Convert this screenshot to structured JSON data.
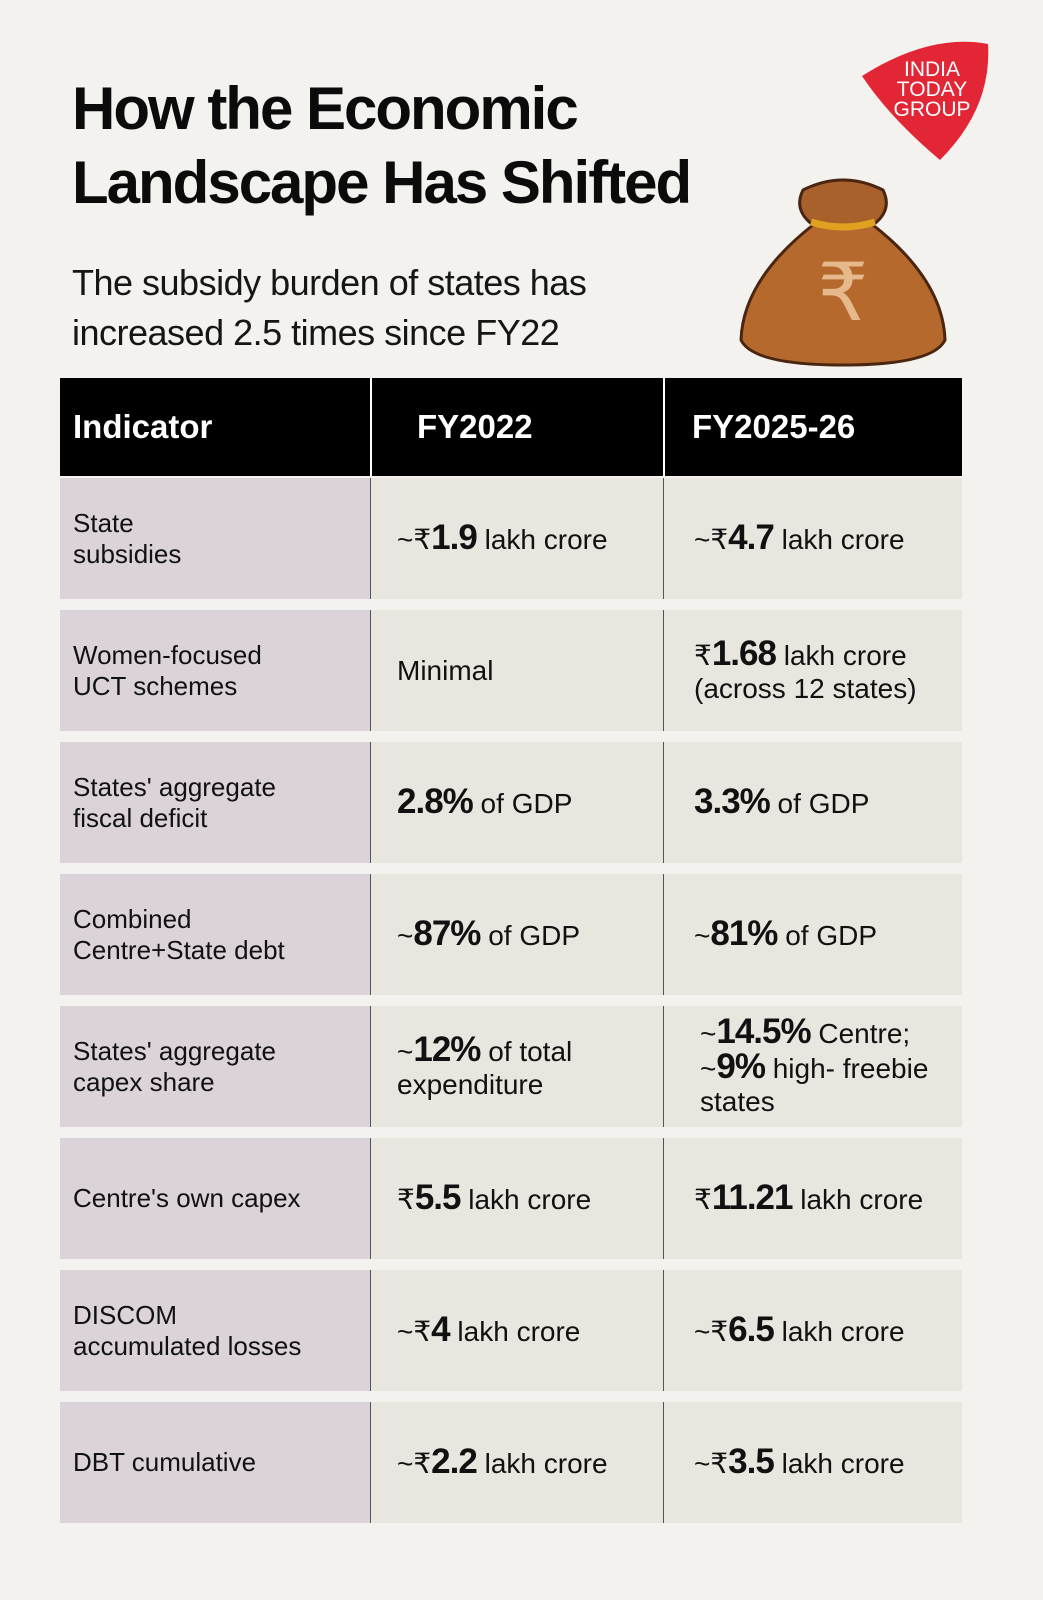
{
  "title": [
    "How the Economic",
    "Landscape Has Shifted"
  ],
  "subtitle": [
    "The subsidy burden of states has",
    "increased 2.5 times since FY22"
  ],
  "logo_text": "INDIA TODAY GROUP",
  "colors": {
    "header": "#000000",
    "indicator_cell": "#dcd3da",
    "value_cell": "#e9e5df",
    "background": "#f3f2ee",
    "logo": "#e32636"
  },
  "chart_data": {
    "type": "table",
    "columns": [
      "Indicator",
      "FY2022",
      "FY2025-26"
    ],
    "rows": [
      {
        "indicator": [
          "State",
          "subsidies"
        ],
        "fy2022": {
          "pre": "~₹",
          "bold": "1.9",
          "post": " lakh crore",
          "line2": ""
        },
        "fy2026": {
          "pre": "~₹",
          "bold": "4.7",
          "post": " lakh crore",
          "line2": ""
        }
      },
      {
        "indicator": [
          "Women-focused",
          "UCT schemes"
        ],
        "fy2022": {
          "pre": "",
          "bold": "",
          "post": "Minimal",
          "line2": ""
        },
        "fy2026": {
          "pre": "₹",
          "bold": "1.68",
          "post": " lakh crore",
          "line2": "(across 12 states)"
        }
      },
      {
        "indicator": [
          "States' aggregate",
          "fiscal deficit"
        ],
        "fy2022": {
          "pre": "",
          "bold": "2.8%",
          "post": " of GDP",
          "line2": ""
        },
        "fy2026": {
          "pre": "",
          "bold": "3.3%",
          "post": " of GDP",
          "line2": ""
        }
      },
      {
        "indicator": [
          "Combined",
          "Centre+State debt"
        ],
        "fy2022": {
          "pre": "~",
          "bold": "87%",
          "post": " of GDP",
          "line2": ""
        },
        "fy2026": {
          "pre": "~",
          "bold": "81%",
          "post": " of GDP",
          "line2": ""
        }
      },
      {
        "indicator": [
          "States' aggregate",
          "capex share"
        ],
        "fy2022": {
          "pre": "~",
          "bold": "12%",
          "post": " of total",
          "line2": "expenditure"
        },
        "fy2026": {
          "pre": "~",
          "bold": "14.5%",
          "post": " Centre;",
          "line2": ""
        },
        "fy2026b": {
          "pre": "~",
          "bold": "9%",
          "post": " high- freebie",
          "line2": "states"
        }
      },
      {
        "indicator": [
          "Centre's own capex",
          ""
        ],
        "fy2022": {
          "pre": "₹",
          "bold": "5.5",
          "post": " lakh crore",
          "line2": ""
        },
        "fy2026": {
          "pre": "₹",
          "bold": "11.21",
          "post": " lakh crore",
          "line2": ""
        }
      },
      {
        "indicator": [
          "DISCOM",
          "accumulated losses"
        ],
        "fy2022": {
          "pre": "~₹",
          "bold": "4",
          "post": " lakh crore",
          "line2": ""
        },
        "fy2026": {
          "pre": "~₹",
          "bold": "6.5",
          "post": " lakh crore",
          "line2": ""
        }
      },
      {
        "indicator": [
          "DBT cumulative",
          ""
        ],
        "fy2022": {
          "pre": "~₹",
          "bold": "2.2",
          "post": " lakh crore",
          "line2": ""
        },
        "fy2026": {
          "pre": "~₹",
          "bold": "3.5",
          "post": " lakh crore",
          "line2": ""
        }
      }
    ]
  }
}
